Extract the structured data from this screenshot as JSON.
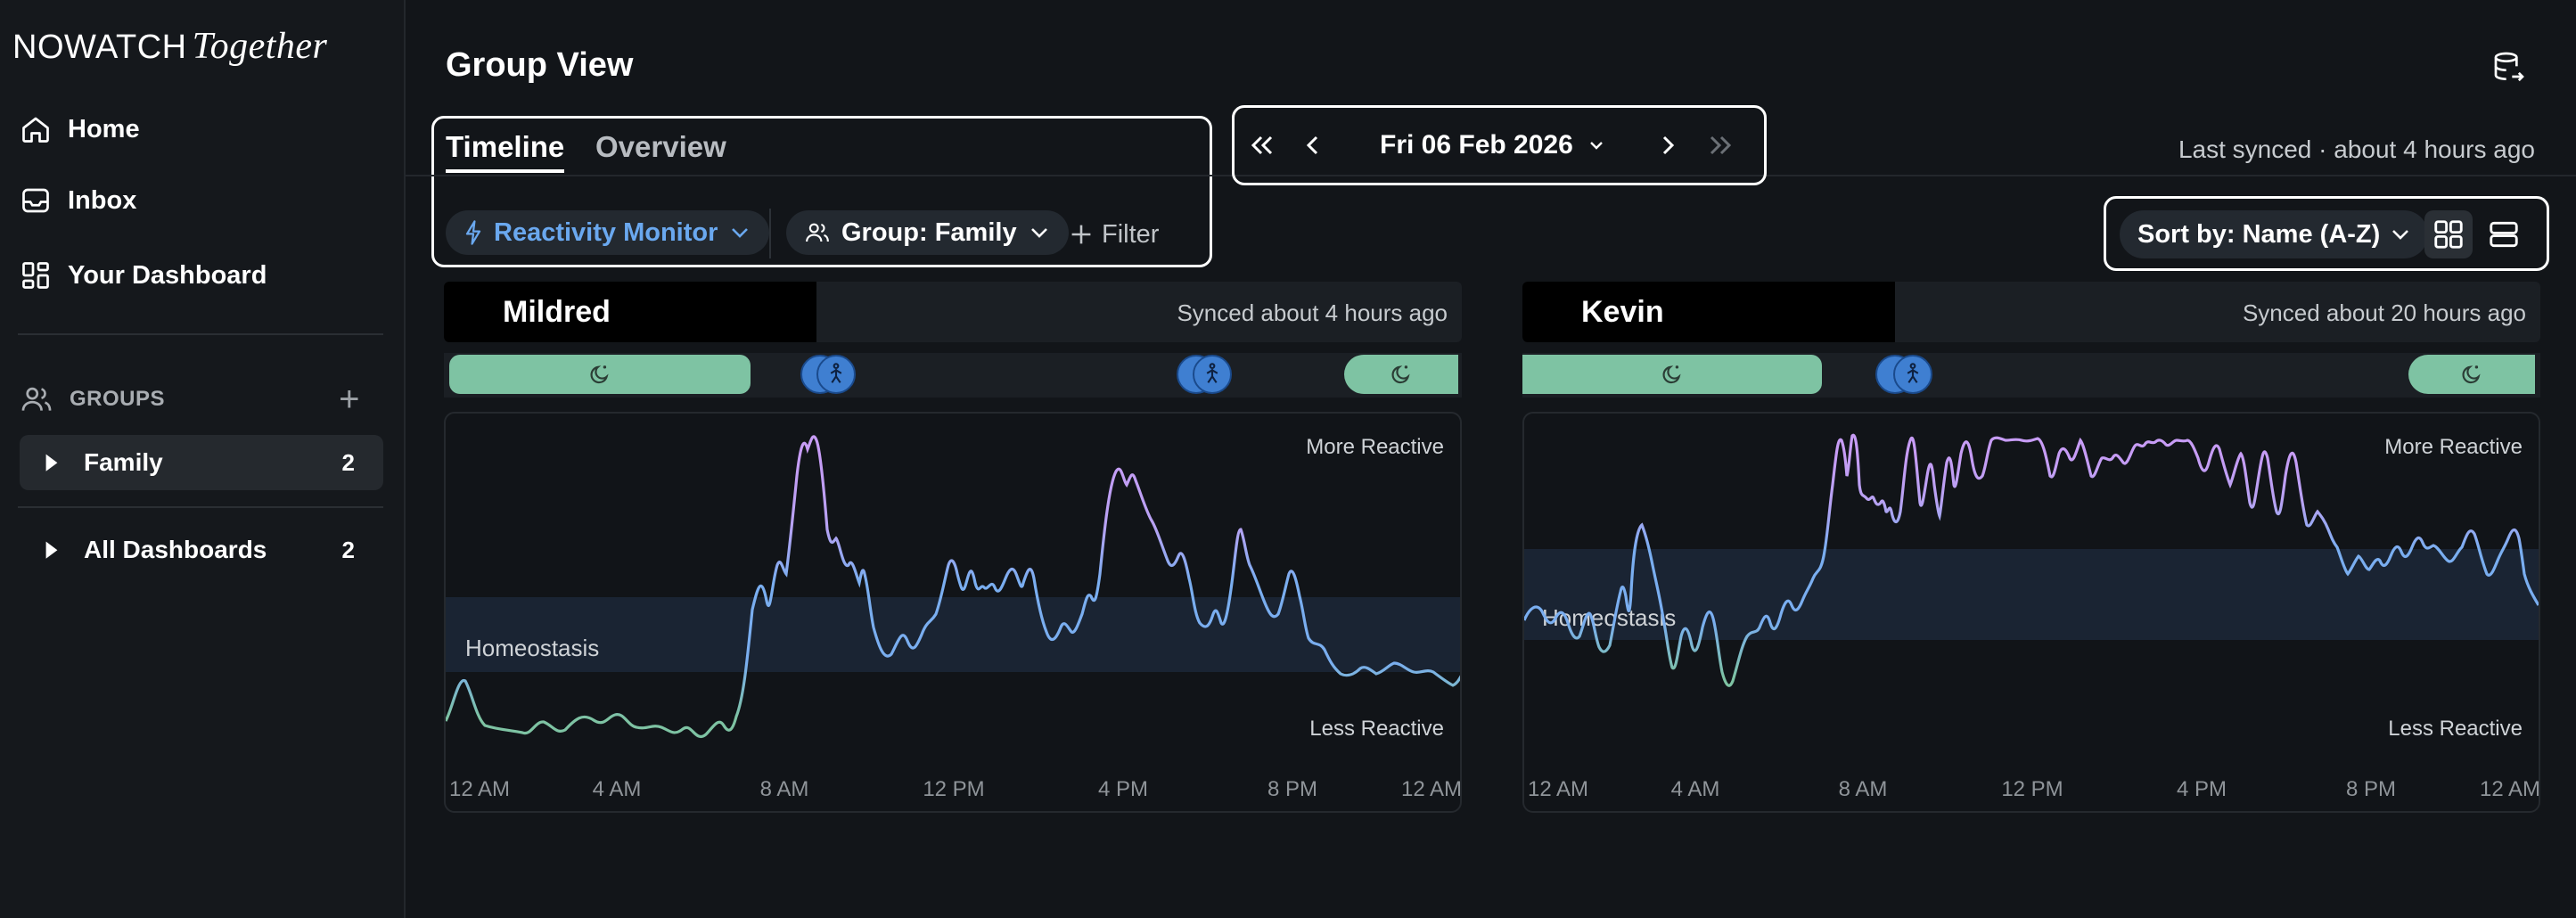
{
  "brand": {
    "name": "NOWATCH",
    "tagline": "Together"
  },
  "sidebar": {
    "nav": [
      {
        "label": "Home",
        "icon": "home-icon"
      },
      {
        "label": "Inbox",
        "icon": "inbox-icon"
      },
      {
        "label": "Your Dashboard",
        "icon": "dashboard-icon"
      }
    ],
    "groups_heading": "GROUPS",
    "groups": [
      {
        "label": "Family",
        "count": "2",
        "active": true
      },
      {
        "label": "All Dashboards",
        "count": "2",
        "active": false
      }
    ]
  },
  "header": {
    "title": "Group View"
  },
  "tabs": [
    {
      "label": "Timeline",
      "active": true
    },
    {
      "label": "Overview",
      "active": false
    }
  ],
  "filters": {
    "monitor": "Reactivity Monitor",
    "group": "Group: Family",
    "filter": "Filter"
  },
  "date_nav": {
    "date": "Fri 06 Feb 2026"
  },
  "sync_status": "Last synced · about 4 hours ago",
  "sort": {
    "label": "Sort by: Name (A-Z)"
  },
  "colors": {
    "accent_blue": "#6aa8ef",
    "sleep_green": "#7ec3a3",
    "calm_green": "#7ec3a3",
    "reactive_blue": "#7aaef0",
    "high_purple": "#c79cf5"
  },
  "cards": [
    {
      "name": "Mildred",
      "synced": "Synced about 4 hours ago",
      "band_label": "Homeostasis",
      "more_label": "More Reactive",
      "less_label": "Less Reactive",
      "ticks": [
        "12 AM",
        "4 AM",
        "8 AM",
        "12 PM",
        "4 PM",
        "8 PM",
        "12 AM"
      ]
    },
    {
      "name": "Kevin",
      "synced": "Synced about 20 hours ago",
      "band_label": "Homeostasis",
      "more_label": "More Reactive",
      "less_label": "Less Reactive",
      "ticks": [
        "12 AM",
        "4 AM",
        "8 AM",
        "12 PM",
        "4 PM",
        "8 PM",
        "12 AM"
      ]
    }
  ]
}
